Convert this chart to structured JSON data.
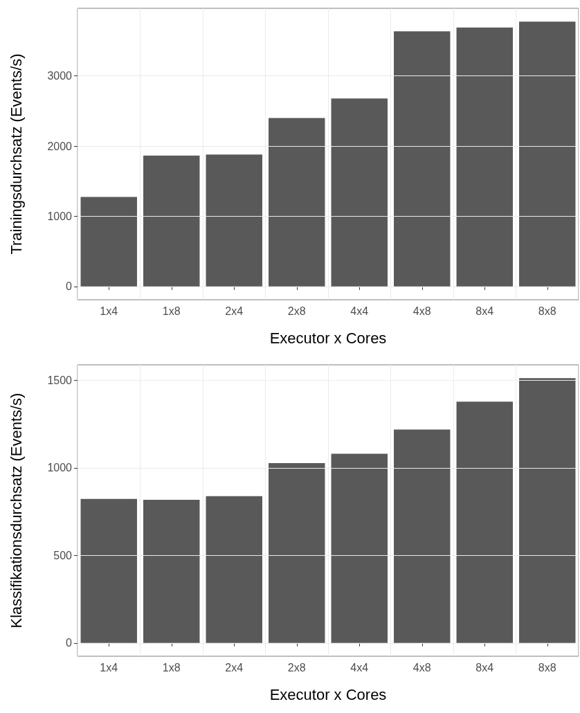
{
  "chart_data": [
    {
      "type": "bar",
      "categories": [
        "1x4",
        "1x8",
        "2x4",
        "2x8",
        "4x4",
        "4x8",
        "8x4",
        "8x8"
      ],
      "xlabel": "Executor x Cores",
      "ylabel": "Trainingsdurchsatz (Events/s)",
      "color": "#595959",
      "values": [
        1275,
        1865,
        1880,
        2400,
        2680,
        3635,
        3690,
        3775
      ],
      "ylim": [
        -189,
        3964
      ],
      "yticks": [
        0,
        1000,
        2000,
        3000
      ],
      "grid": true
    },
    {
      "type": "bar",
      "categories": [
        "1x4",
        "1x8",
        "2x4",
        "2x8",
        "4x4",
        "4x8",
        "8x4",
        "8x8"
      ],
      "xlabel": "Executor x Cores",
      "ylabel": "Klassifikationsdurchsatz (Events/s)",
      "color": "#595959",
      "values": [
        822,
        817,
        838,
        1027,
        1080,
        1218,
        1378,
        1512
      ],
      "ylim": [
        -76,
        1588
      ],
      "yticks": [
        0,
        500,
        1000,
        1500
      ],
      "grid": true
    }
  ]
}
